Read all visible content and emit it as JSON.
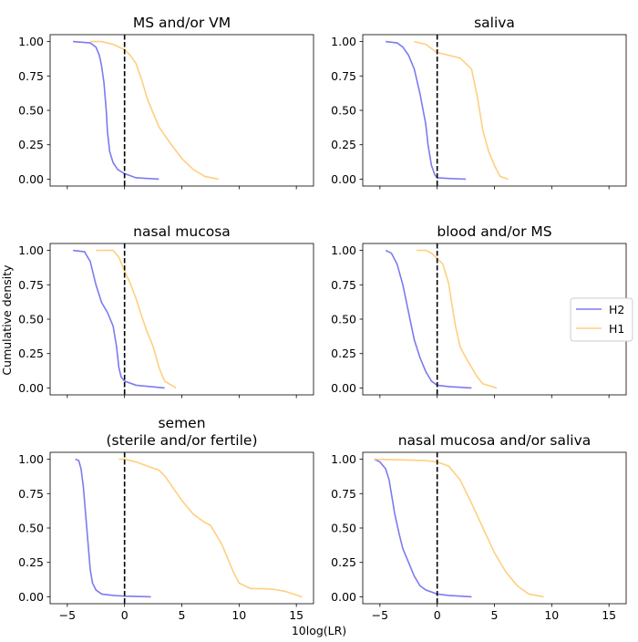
{
  "chart_data": {
    "type": "line",
    "xlabel": "10log(LR)",
    "ylabel": "Cumulative density",
    "xlim": [
      -6.5,
      16.5
    ],
    "ylim": [
      -0.05,
      1.05
    ],
    "xticks": [
      -5,
      0,
      5,
      10,
      15
    ],
    "xtick_labels": [
      "−5",
      "0",
      "5",
      "10",
      "15"
    ],
    "yticks": [
      0,
      0.25,
      0.5,
      0.75,
      1.0
    ],
    "ytick_labels": [
      "0.00",
      "0.25",
      "0.50",
      "0.75",
      "1.00"
    ],
    "legend": {
      "placement": "right",
      "entries": [
        "H2",
        "H1"
      ]
    },
    "colors": {
      "H2": "#7b7bf0",
      "H1": "#ffcf80",
      "threshold": "#000000"
    },
    "threshold_x": 0,
    "panels": [
      {
        "title_lines": [
          "MS and/or VM"
        ],
        "series": [
          {
            "name": "H2",
            "x": [
              -4.5,
              -3.0,
              -2.5,
              -2.2,
              -2.0,
              -1.8,
              -1.6,
              -1.5,
              -1.3,
              -1.0,
              -0.6,
              0,
              1.0,
              3.0
            ],
            "y": [
              1.0,
              0.99,
              0.96,
              0.9,
              0.82,
              0.7,
              0.5,
              0.35,
              0.2,
              0.12,
              0.07,
              0.04,
              0.01,
              0.0
            ]
          },
          {
            "name": "H1",
            "x": [
              -3.0,
              -2.0,
              -1.0,
              0,
              0.5,
              1.0,
              1.5,
              2.0,
              2.5,
              3.0,
              4.0,
              5.0,
              6.0,
              7.0,
              8.2
            ],
            "y": [
              1.0,
              1.0,
              0.98,
              0.94,
              0.9,
              0.84,
              0.72,
              0.58,
              0.48,
              0.38,
              0.26,
              0.15,
              0.07,
              0.02,
              0.0
            ]
          }
        ]
      },
      {
        "title_lines": [
          "saliva"
        ],
        "series": [
          {
            "name": "H2",
            "x": [
              -4.5,
              -3.5,
              -3.0,
              -2.5,
              -2.0,
              -1.5,
              -1.0,
              -0.8,
              -0.5,
              -0.2,
              0,
              1.0,
              2.5
            ],
            "y": [
              1.0,
              0.99,
              0.96,
              0.9,
              0.8,
              0.62,
              0.4,
              0.25,
              0.1,
              0.03,
              0.01,
              0.005,
              0.0
            ]
          },
          {
            "name": "H1",
            "x": [
              -2.0,
              -1.0,
              0,
              1.0,
              2.0,
              3.0,
              3.5,
              4.0,
              4.5,
              5.0,
              5.5,
              6.2
            ],
            "y": [
              1.0,
              0.98,
              0.92,
              0.9,
              0.88,
              0.8,
              0.6,
              0.35,
              0.2,
              0.1,
              0.02,
              0.0
            ]
          }
        ]
      },
      {
        "title_lines": [
          "nasal mucosa"
        ],
        "series": [
          {
            "name": "H2",
            "x": [
              -4.5,
              -3.5,
              -3.0,
              -2.5,
              -2.0,
              -1.5,
              -1.0,
              -0.7,
              -0.5,
              -0.3,
              0,
              1.0,
              3.5
            ],
            "y": [
              1.0,
              0.99,
              0.92,
              0.75,
              0.62,
              0.55,
              0.45,
              0.3,
              0.15,
              0.08,
              0.05,
              0.02,
              0.0
            ]
          },
          {
            "name": "H1",
            "x": [
              -2.5,
              -1.0,
              -0.5,
              0,
              0.5,
              1.0,
              1.5,
              2.0,
              2.5,
              3.0,
              3.5,
              4.5
            ],
            "y": [
              1.0,
              1.0,
              0.95,
              0.85,
              0.76,
              0.65,
              0.52,
              0.4,
              0.3,
              0.15,
              0.05,
              0.0
            ]
          }
        ]
      },
      {
        "title_lines": [
          "blood and/or MS"
        ],
        "series": [
          {
            "name": "H2",
            "x": [
              -4.5,
              -4.0,
              -3.5,
              -3.0,
              -2.5,
              -2.0,
              -1.5,
              -1.0,
              -0.5,
              0,
              1.0,
              3.0
            ],
            "y": [
              1.0,
              0.98,
              0.9,
              0.75,
              0.55,
              0.35,
              0.22,
              0.12,
              0.05,
              0.02,
              0.01,
              0.0
            ]
          },
          {
            "name": "H1",
            "x": [
              -1.8,
              -1.0,
              -0.5,
              0,
              0.5,
              1.0,
              1.3,
              1.6,
              2.0,
              2.5,
              3.0,
              3.5,
              4.0,
              5.2
            ],
            "y": [
              1.0,
              1.0,
              0.98,
              0.94,
              0.9,
              0.76,
              0.6,
              0.45,
              0.3,
              0.22,
              0.15,
              0.08,
              0.03,
              0.0
            ]
          }
        ]
      },
      {
        "title_lines": [
          "semen",
          "(sterile and/or fertile)"
        ],
        "series": [
          {
            "name": "H2",
            "x": [
              -4.3,
              -4.0,
              -3.8,
              -3.6,
              -3.4,
              -3.2,
              -3.0,
              -2.8,
              -2.5,
              -2.0,
              -1.0,
              0,
              2.3
            ],
            "y": [
              1.0,
              0.99,
              0.93,
              0.8,
              0.6,
              0.4,
              0.2,
              0.1,
              0.05,
              0.02,
              0.01,
              0.005,
              0.0
            ]
          },
          {
            "name": "H1",
            "x": [
              -0.5,
              0,
              1.0,
              2.0,
              3.0,
              3.5,
              4.0,
              5.0,
              6.0,
              7.0,
              7.5,
              8.0,
              8.5,
              9.0,
              9.5,
              10.0,
              11.0,
              12.0,
              13.0,
              14.0,
              15.5
            ],
            "y": [
              1.0,
              1.0,
              0.98,
              0.95,
              0.92,
              0.88,
              0.82,
              0.7,
              0.6,
              0.54,
              0.52,
              0.45,
              0.38,
              0.28,
              0.18,
              0.1,
              0.06,
              0.06,
              0.055,
              0.04,
              0.0
            ]
          }
        ]
      },
      {
        "title_lines": [
          "nasal mucosa and/or saliva"
        ],
        "series": [
          {
            "name": "H2",
            "x": [
              -5.5,
              -5.0,
              -4.5,
              -4.2,
              -4.0,
              -3.7,
              -3.3,
              -3.0,
              -2.5,
              -2.0,
              -1.5,
              -1.0,
              0,
              1.0,
              3.0
            ],
            "y": [
              1.0,
              0.98,
              0.93,
              0.85,
              0.75,
              0.6,
              0.45,
              0.35,
              0.25,
              0.15,
              0.08,
              0.05,
              0.02,
              0.01,
              0.0
            ]
          },
          {
            "name": "H1",
            "x": [
              -5.5,
              -3.0,
              -1.0,
              0,
              1.0,
              2.0,
              3.0,
              4.0,
              5.0,
              6.0,
              7.0,
              8.0,
              9.3
            ],
            "y": [
              1.0,
              0.995,
              0.99,
              0.98,
              0.95,
              0.85,
              0.68,
              0.5,
              0.32,
              0.18,
              0.08,
              0.02,
              0.0
            ]
          }
        ]
      }
    ]
  }
}
